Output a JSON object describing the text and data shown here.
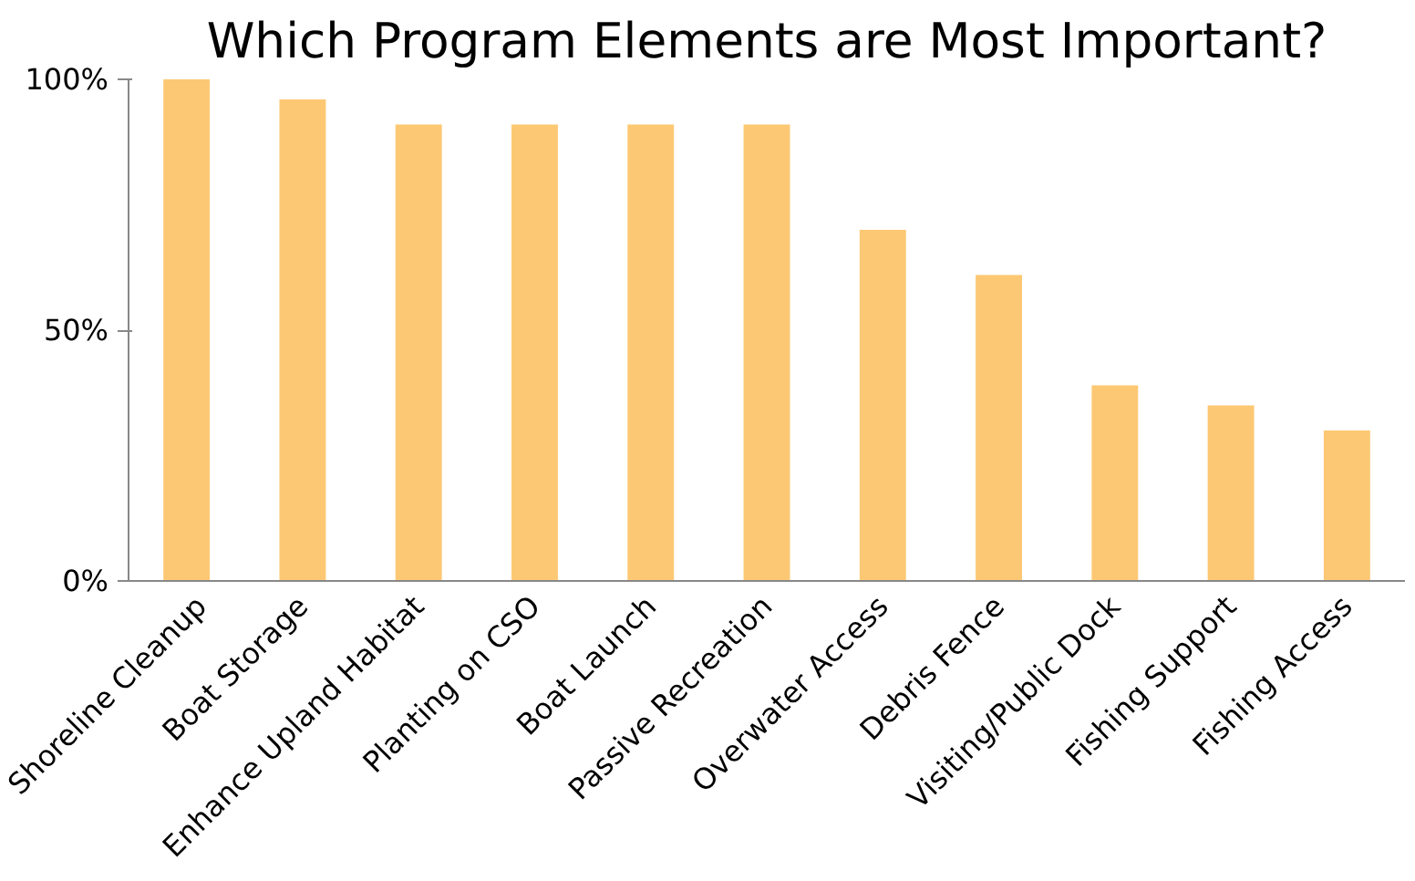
{
  "chart_data": {
    "type": "bar",
    "title": "Which Program Elements are Most Important?",
    "categories": [
      "Shoreline Cleanup",
      "Boat Storage",
      "Enhance Upland Habitat",
      "Planting on CSO",
      "Boat Launch",
      "Passive Recreation",
      "Overwater Access",
      "Debris Fence",
      "Visiting/Public Dock",
      "Fishing Support",
      "Fishing Access"
    ],
    "values": [
      100,
      96,
      91,
      91,
      91,
      91,
      70,
      61,
      39,
      35,
      30
    ],
    "color": "#fdc874",
    "ylim": [
      0,
      100
    ],
    "yticks": [
      {
        "value": 0,
        "label": "0%"
      },
      {
        "value": 50,
        "label": "50%"
      },
      {
        "value": 100,
        "label": "100%"
      }
    ],
    "grid": false
  }
}
